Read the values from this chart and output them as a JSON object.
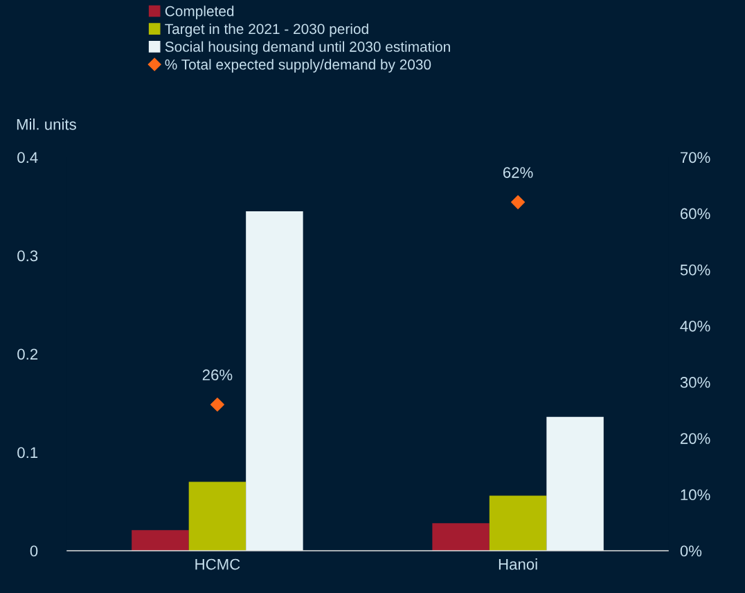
{
  "chart_data": {
    "type": "bar",
    "categories": [
      "HCMC",
      "Hanoi"
    ],
    "ylabel": "Mil. units",
    "series": [
      {
        "name": "Completed",
        "color": "#a51c30",
        "values": [
          0.021,
          0.028
        ]
      },
      {
        "name": "Target in the 2021 - 2030 period",
        "color": "#b5bd00",
        "values": [
          0.07,
          0.056
        ]
      },
      {
        "name": "Social housing demand until 2030 estimation",
        "color": "#eaf4f7",
        "values": [
          0.345,
          0.136
        ]
      },
      {
        "name": "% Total expected supply/demand by 2030",
        "type": "scatter",
        "axis": "y2",
        "marker": "diamond",
        "color": "#ff6a1a",
        "values": [
          26,
          62
        ],
        "value_labels": [
          "26%",
          "62%"
        ]
      }
    ],
    "ylim": [
      0,
      0.4
    ],
    "yticks": [
      {
        "value": 0,
        "label": "0"
      },
      0.1,
      0.2,
      0.3,
      0.4
    ],
    "y2lim": [
      0,
      70
    ],
    "y2ticks": [
      {
        "value": 0,
        "label": "0%"
      },
      {
        "value": 10,
        "label": "10%"
      },
      {
        "value": 20,
        "label": "20%"
      },
      {
        "value": 30,
        "label": "30%"
      },
      {
        "value": 40,
        "label": "40%"
      },
      {
        "value": 50,
        "label": "50%"
      },
      {
        "value": 60,
        "label": "60%"
      },
      {
        "value": 70,
        "label": "70%"
      }
    ],
    "grid": false,
    "legend": "top"
  }
}
